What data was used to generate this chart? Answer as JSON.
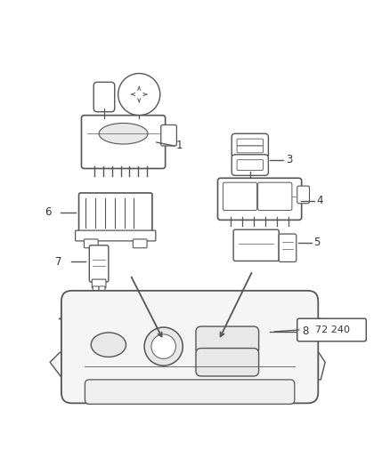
{
  "bg_color": "#ffffff",
  "line_color": "#555555",
  "label_color": "#333333",
  "diagram_number": "72 240"
}
